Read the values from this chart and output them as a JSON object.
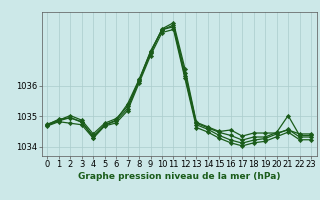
{
  "title": "Graphe pression niveau de la mer (hPa)",
  "background_color": "#cce8e8",
  "grid_color": "#aacccc",
  "line_color": "#1a5c1a",
  "marker_color": "#1a5c1a",
  "xlim": [
    -0.5,
    23.5
  ],
  "ylim": [
    1033.7,
    1038.4
  ],
  "yticks": [
    1034,
    1035,
    1036
  ],
  "xticks": [
    0,
    1,
    2,
    3,
    4,
    5,
    6,
    7,
    8,
    9,
    10,
    11,
    12,
    13,
    14,
    15,
    16,
    17,
    18,
    19,
    20,
    21,
    22,
    23
  ],
  "series": [
    [
      1034.7,
      1034.85,
      1034.95,
      1034.8,
      1034.35,
      1034.7,
      1034.85,
      1035.25,
      1036.15,
      1037.05,
      1037.85,
      1038.05,
      1036.55,
      1034.8,
      1034.65,
      1034.5,
      1034.55,
      1034.35,
      1034.45,
      1034.45,
      1034.45,
      1034.55,
      1034.42,
      1034.42
    ],
    [
      1034.72,
      1034.9,
      1034.95,
      1034.82,
      1034.3,
      1034.72,
      1034.87,
      1035.4,
      1036.2,
      1037.1,
      1037.82,
      1037.92,
      1036.3,
      1034.72,
      1034.57,
      1034.37,
      1034.22,
      1034.12,
      1034.22,
      1034.27,
      1034.42,
      1034.57,
      1034.32,
      1034.32
    ],
    [
      1034.74,
      1034.87,
      1035.02,
      1034.87,
      1034.42,
      1034.77,
      1034.92,
      1035.32,
      1036.17,
      1037.12,
      1037.82,
      1037.97,
      1036.42,
      1034.77,
      1034.62,
      1034.47,
      1034.37,
      1034.22,
      1034.32,
      1034.32,
      1034.47,
      1035.02,
      1034.37,
      1034.37
    ],
    [
      1034.68,
      1034.82,
      1034.77,
      1034.72,
      1034.28,
      1034.68,
      1034.78,
      1035.18,
      1036.08,
      1036.98,
      1037.73,
      1037.83,
      1036.23,
      1034.63,
      1034.48,
      1034.28,
      1034.13,
      1034.03,
      1034.13,
      1034.18,
      1034.33,
      1034.48,
      1034.23,
      1034.23
    ]
  ],
  "x": [
    0,
    1,
    2,
    3,
    4,
    5,
    6,
    7,
    8,
    9,
    10,
    11,
    12,
    13,
    14,
    15,
    16,
    17,
    18,
    19,
    20,
    21,
    22,
    23
  ],
  "tick_fontsize": 6,
  "label_fontsize": 6.5,
  "linewidth": 0.9,
  "markersize": 2.2
}
